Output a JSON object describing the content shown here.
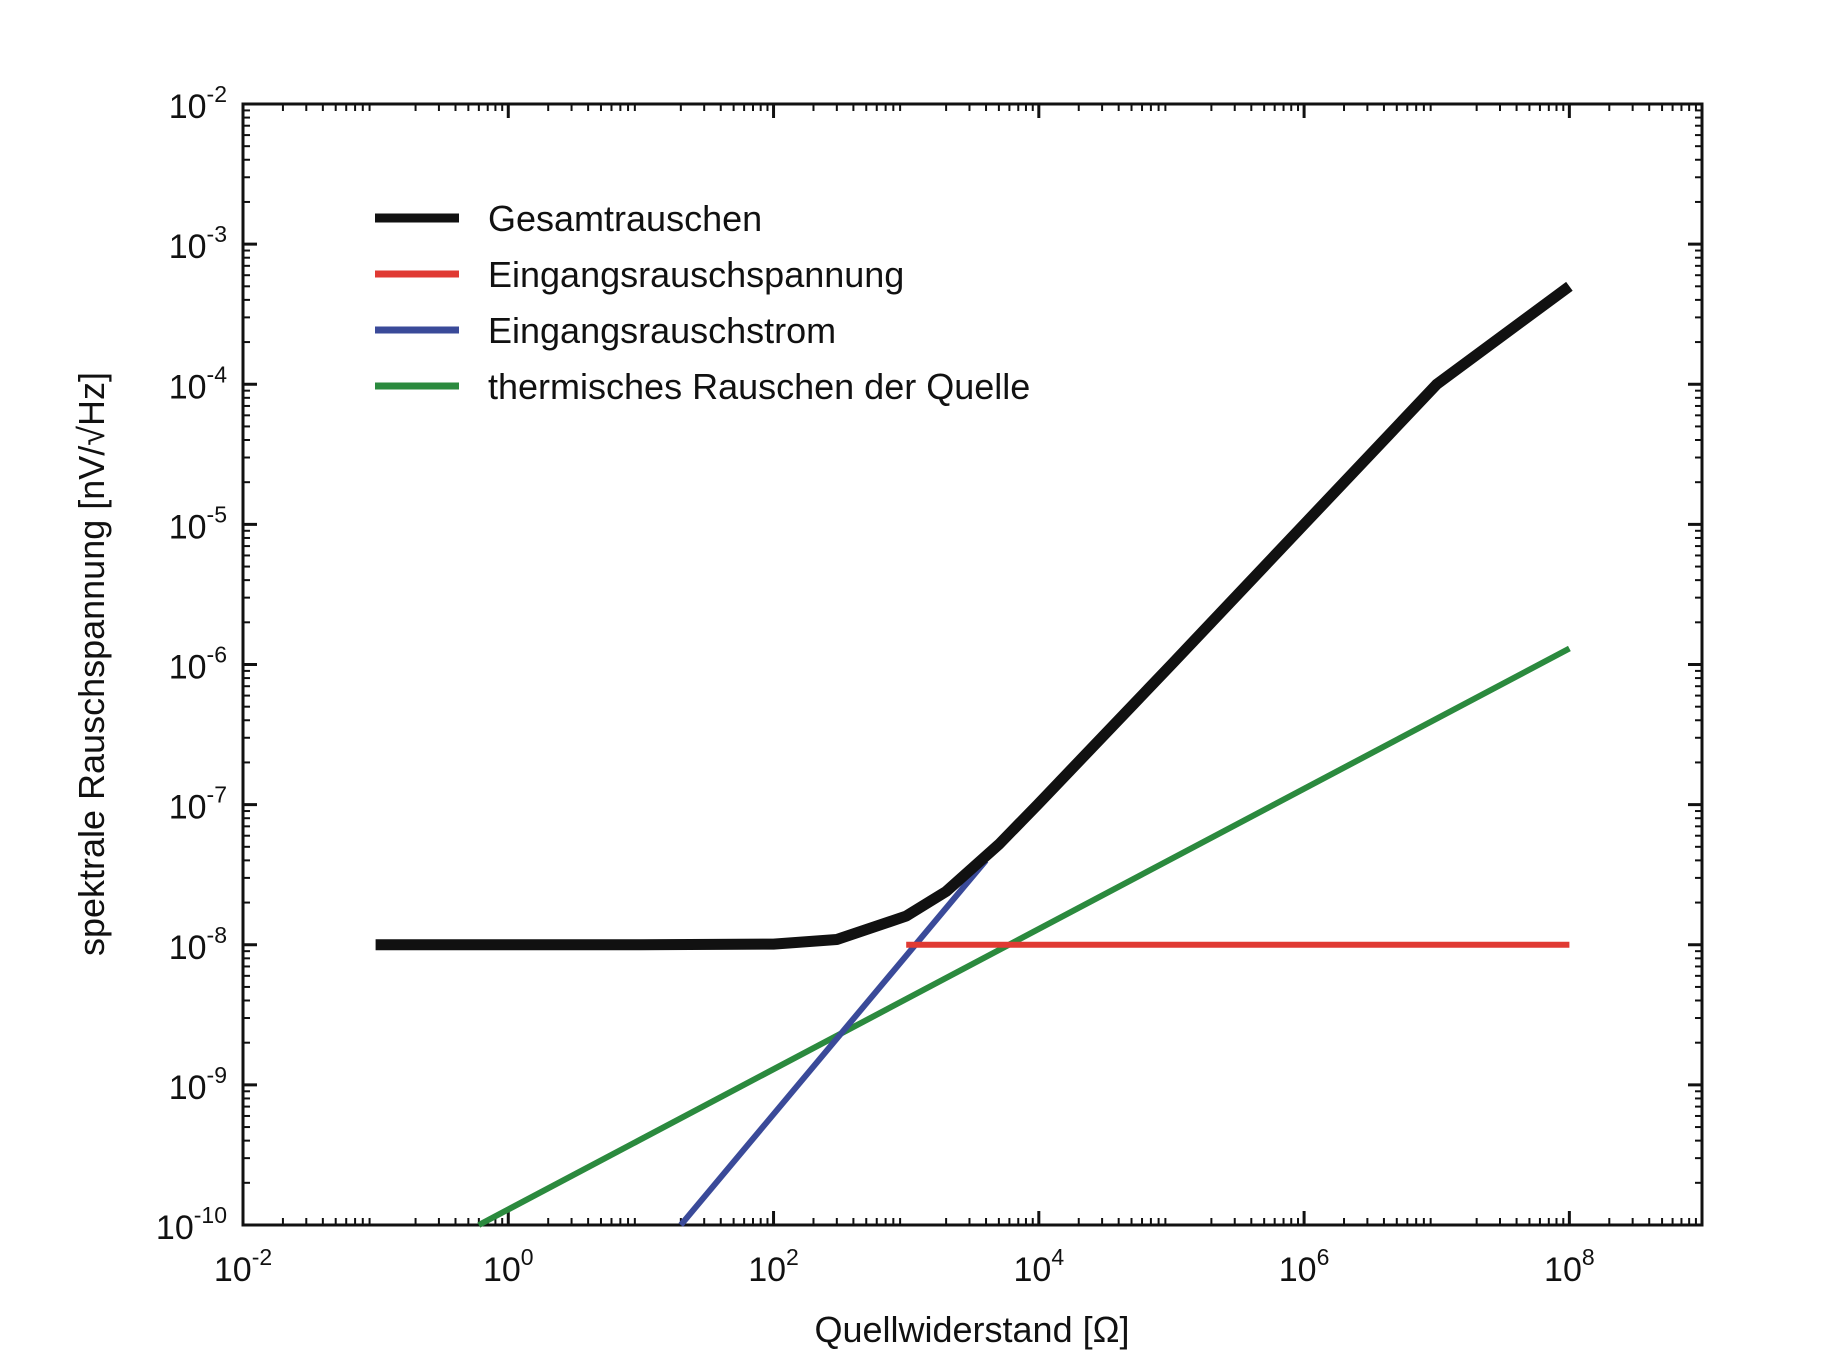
{
  "chart_data": {
    "type": "line",
    "xlabel": "Quellwiderstand [Ω]",
    "ylabel": "spektrale Rauschspannung [nV/√Hz]",
    "xscale": "log",
    "yscale": "log",
    "xlim": [
      0.01,
      1000000000
    ],
    "ylim": [
      1e-10,
      0.01
    ],
    "grid": false,
    "legend_position": "top-left",
    "x_ticks": [
      {
        "base": "10",
        "exp": "-2"
      },
      {
        "base": "10",
        "exp": "0"
      },
      {
        "base": "10",
        "exp": "2"
      },
      {
        "base": "10",
        "exp": "4"
      },
      {
        "base": "10",
        "exp": "6"
      },
      {
        "base": "10",
        "exp": "8"
      }
    ],
    "x_tick_values": [
      0.01,
      1,
      100,
      10000,
      1000000,
      100000000
    ],
    "y_ticks": [
      {
        "base": "10",
        "exp": "-2"
      },
      {
        "base": "10",
        "exp": "-3"
      },
      {
        "base": "10",
        "exp": "-4"
      },
      {
        "base": "10",
        "exp": "-5"
      },
      {
        "base": "10",
        "exp": "-6"
      },
      {
        "base": "10",
        "exp": "-7"
      },
      {
        "base": "10",
        "exp": "-8"
      },
      {
        "base": "10",
        "exp": "-9"
      },
      {
        "base": "10",
        "exp": "-10"
      }
    ],
    "y_tick_values": [
      0.01,
      0.001,
      0.0001,
      1e-05,
      1e-06,
      1e-07,
      1e-08,
      1e-09,
      1e-10
    ],
    "series": [
      {
        "name": "Gesamtrauschen",
        "color": "#111111",
        "x": [
          0.1,
          1,
          10,
          100,
          300,
          1000,
          2000,
          5000,
          10000,
          100000,
          1000000,
          10000000,
          100000000
        ],
        "y": [
          1e-08,
          1e-08,
          1e-08,
          1.01e-08,
          1.09e-08,
          1.6e-08,
          2.4e-08,
          5.2e-08,
          1.02e-07,
          1e-06,
          1e-05,
          0.0001,
          0.0005
        ]
      },
      {
        "name": "Eingangsrauschspannung",
        "color": "#e03a33",
        "x": [
          1000,
          100000000
        ],
        "y": [
          1e-08,
          1e-08
        ]
      },
      {
        "name": "Eingangsrauschstrom",
        "color": "#3a4a99",
        "x": [
          20,
          4000
        ],
        "y": [
          1e-10,
          4e-08
        ]
      },
      {
        "name": "thermisches Rauschen der Quelle",
        "color": "#2b8a3e",
        "x": [
          0.6,
          100000000
        ],
        "y": [
          1e-10,
          1.3e-06
        ]
      }
    ]
  }
}
